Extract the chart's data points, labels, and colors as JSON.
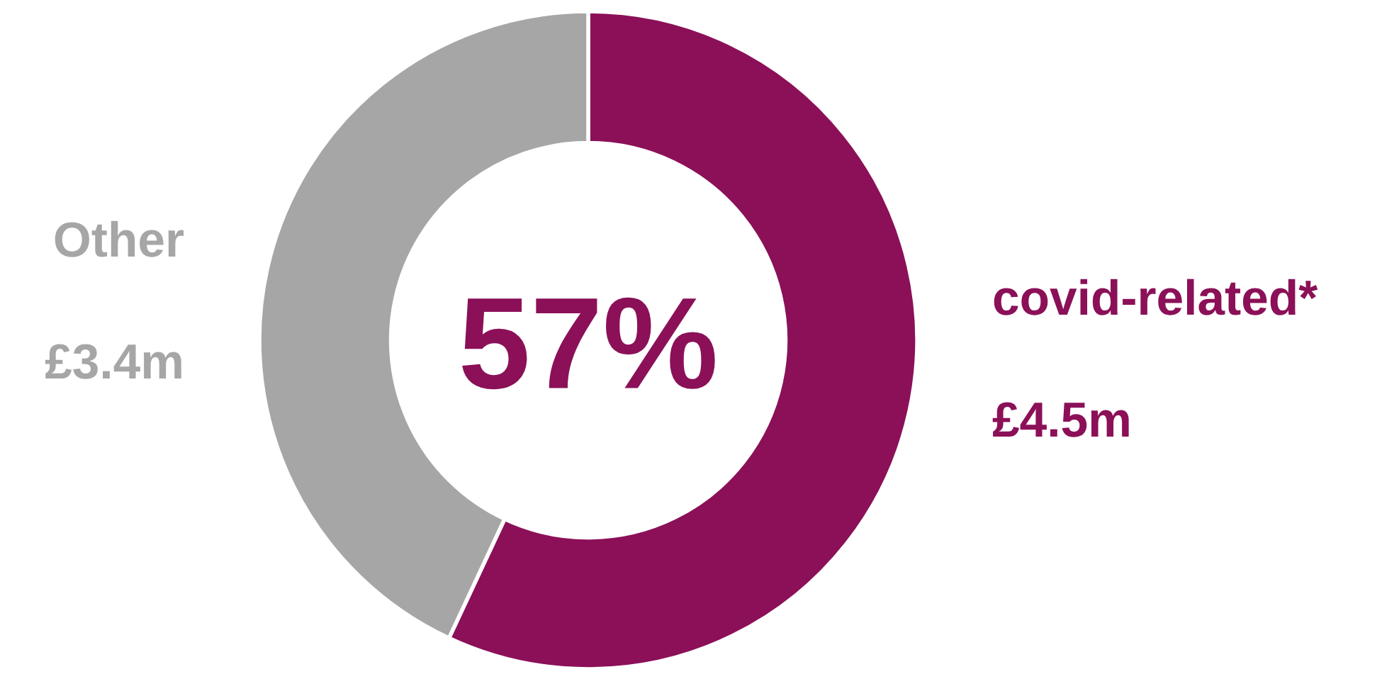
{
  "chart_data": {
    "type": "donut",
    "categories": [
      "covid-related*",
      "Other"
    ],
    "values": [
      4.5,
      3.4
    ],
    "colors": [
      "#8b1058",
      "#a6a6a6"
    ],
    "value_labels": [
      "£4.5m",
      "£3.4m"
    ],
    "annotations": [
      "57%"
    ]
  }
}
